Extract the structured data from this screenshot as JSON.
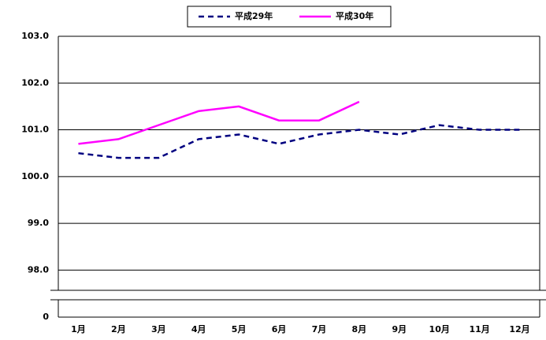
{
  "chart_data": {
    "type": "line",
    "categories": [
      "1月",
      "2月",
      "3月",
      "4月",
      "5月",
      "6月",
      "7月",
      "8月",
      "9月",
      "10月",
      "11月",
      "12月"
    ],
    "series": [
      {
        "name": "平成29年",
        "color": "#000080",
        "dash": true,
        "values": [
          100.5,
          100.4,
          100.4,
          100.8,
          100.9,
          100.7,
          100.9,
          101.0,
          100.9,
          101.1,
          101.0,
          101.0
        ]
      },
      {
        "name": "平成30年",
        "color": "#ff00ff",
        "dash": false,
        "values": [
          100.7,
          100.8,
          101.1,
          101.4,
          101.5,
          101.2,
          101.2,
          101.6,
          null,
          null,
          null,
          null
        ]
      }
    ],
    "ylim": [
      0,
      103
    ],
    "ybreak": [
      0,
      97.5
    ],
    "yticks": [
      {
        "value": 0,
        "label": "0"
      },
      {
        "value": 98,
        "label": "98.0"
      },
      {
        "value": 99,
        "label": "99.0"
      },
      {
        "value": 100,
        "label": "100.0"
      },
      {
        "value": 101,
        "label": "101.0"
      },
      {
        "value": 102,
        "label": "102.0"
      },
      {
        "value": 103,
        "label": "103.0"
      }
    ],
    "grid": true,
    "legend": "top"
  }
}
